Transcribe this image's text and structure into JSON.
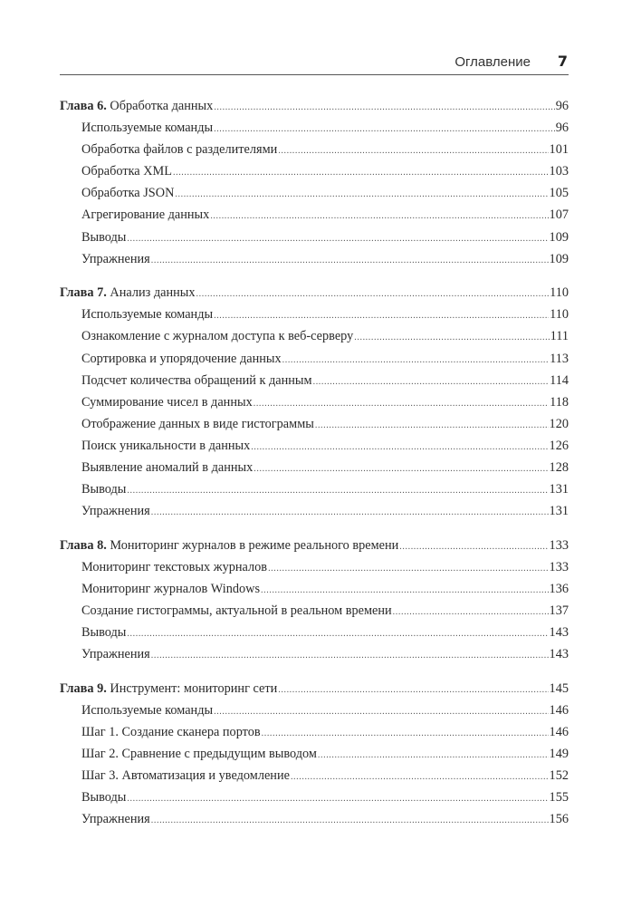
{
  "header": {
    "title": "Оглавление",
    "page": "7"
  },
  "chapters": [
    {
      "prefix": "Глава 6.",
      "title": "Обработка данных",
      "page": "96",
      "items": [
        {
          "title": "Используемые команды",
          "page": "96"
        },
        {
          "title": "Обработка файлов с разделителями",
          "page": "101"
        },
        {
          "title": "Обработка XML",
          "page": "103"
        },
        {
          "title": "Обработка JSON",
          "page": "105"
        },
        {
          "title": "Агрегирование данных",
          "page": "107"
        },
        {
          "title": "Выводы",
          "page": "109"
        },
        {
          "title": "Упражнения",
          "page": "109"
        }
      ]
    },
    {
      "prefix": "Глава 7.",
      "title": "Анализ данных",
      "page": "110",
      "items": [
        {
          "title": "Используемые команды",
          "page": "110"
        },
        {
          "title": "Ознакомление с журналом доступа к веб-серверу",
          "page": "111"
        },
        {
          "title": "Сортировка и упорядочение данных",
          "page": "113"
        },
        {
          "title": "Подсчет количества обращений к данным",
          "page": "114"
        },
        {
          "title": "Суммирование чисел в данных",
          "page": "118"
        },
        {
          "title": "Отображение данных в виде гистограммы",
          "page": "120"
        },
        {
          "title": "Поиск уникальности в данных",
          "page": "126"
        },
        {
          "title": "Выявление аномалий в данных",
          "page": "128"
        },
        {
          "title": "Выводы",
          "page": "131"
        },
        {
          "title": "Упражнения",
          "page": "131"
        }
      ]
    },
    {
      "prefix": "Глава 8.",
      "title": "Мониторинг журналов в режиме реального времени",
      "page": "133",
      "items": [
        {
          "title": "Мониторинг текстовых журналов",
          "page": "133"
        },
        {
          "title": "Мониторинг журналов Windows",
          "page": "136"
        },
        {
          "title": "Создание гистограммы, актуальной в реальном времени",
          "page": "137"
        },
        {
          "title": "Выводы",
          "page": "143"
        },
        {
          "title": "Упражнения",
          "page": "143"
        }
      ]
    },
    {
      "prefix": "Глава 9.",
      "title": "Инструмент: мониторинг сети",
      "page": "145",
      "items": [
        {
          "title": "Используемые команды",
          "page": "146"
        },
        {
          "title": "Шаг 1. Создание сканера портов",
          "page": "146"
        },
        {
          "title": "Шаг 2. Сравнение с предыдущим выводом",
          "page": "149"
        },
        {
          "title": "Шаг 3. Автоматизация и уведомление",
          "page": "152"
        },
        {
          "title": "Выводы",
          "page": "155"
        },
        {
          "title": "Упражнения",
          "page": "156"
        }
      ]
    }
  ]
}
